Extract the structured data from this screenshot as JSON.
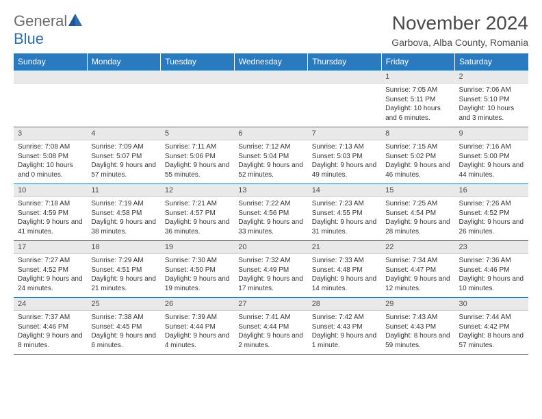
{
  "brand": {
    "general": "General",
    "blue": "Blue"
  },
  "title": "November 2024",
  "location": "Garbova, Alba County, Romania",
  "weekdays": [
    "Sunday",
    "Monday",
    "Tuesday",
    "Wednesday",
    "Thursday",
    "Friday",
    "Saturday"
  ],
  "colors": {
    "header_bg": "#2a7ac0",
    "header_text": "#ffffff",
    "daynum_bg": "#e9e9e9",
    "border": "#2a7ac0",
    "text": "#333333",
    "title": "#4a4a4a"
  },
  "fonts": {
    "title_size": 28,
    "location_size": 14,
    "weekday_size": 12,
    "daynum_size": 11,
    "body_size": 10
  },
  "grid": {
    "cols": 7,
    "rows": 5,
    "first_day_col": 5,
    "days_in_month": 30
  },
  "days": [
    {
      "n": 1,
      "sunrise": "7:05 AM",
      "sunset": "5:11 PM",
      "daylight": "10 hours and 6 minutes."
    },
    {
      "n": 2,
      "sunrise": "7:06 AM",
      "sunset": "5:10 PM",
      "daylight": "10 hours and 3 minutes."
    },
    {
      "n": 3,
      "sunrise": "7:08 AM",
      "sunset": "5:08 PM",
      "daylight": "10 hours and 0 minutes."
    },
    {
      "n": 4,
      "sunrise": "7:09 AM",
      "sunset": "5:07 PM",
      "daylight": "9 hours and 57 minutes."
    },
    {
      "n": 5,
      "sunrise": "7:11 AM",
      "sunset": "5:06 PM",
      "daylight": "9 hours and 55 minutes."
    },
    {
      "n": 6,
      "sunrise": "7:12 AM",
      "sunset": "5:04 PM",
      "daylight": "9 hours and 52 minutes."
    },
    {
      "n": 7,
      "sunrise": "7:13 AM",
      "sunset": "5:03 PM",
      "daylight": "9 hours and 49 minutes."
    },
    {
      "n": 8,
      "sunrise": "7:15 AM",
      "sunset": "5:02 PM",
      "daylight": "9 hours and 46 minutes."
    },
    {
      "n": 9,
      "sunrise": "7:16 AM",
      "sunset": "5:00 PM",
      "daylight": "9 hours and 44 minutes."
    },
    {
      "n": 10,
      "sunrise": "7:18 AM",
      "sunset": "4:59 PM",
      "daylight": "9 hours and 41 minutes."
    },
    {
      "n": 11,
      "sunrise": "7:19 AM",
      "sunset": "4:58 PM",
      "daylight": "9 hours and 38 minutes."
    },
    {
      "n": 12,
      "sunrise": "7:21 AM",
      "sunset": "4:57 PM",
      "daylight": "9 hours and 36 minutes."
    },
    {
      "n": 13,
      "sunrise": "7:22 AM",
      "sunset": "4:56 PM",
      "daylight": "9 hours and 33 minutes."
    },
    {
      "n": 14,
      "sunrise": "7:23 AM",
      "sunset": "4:55 PM",
      "daylight": "9 hours and 31 minutes."
    },
    {
      "n": 15,
      "sunrise": "7:25 AM",
      "sunset": "4:54 PM",
      "daylight": "9 hours and 28 minutes."
    },
    {
      "n": 16,
      "sunrise": "7:26 AM",
      "sunset": "4:52 PM",
      "daylight": "9 hours and 26 minutes."
    },
    {
      "n": 17,
      "sunrise": "7:27 AM",
      "sunset": "4:52 PM",
      "daylight": "9 hours and 24 minutes."
    },
    {
      "n": 18,
      "sunrise": "7:29 AM",
      "sunset": "4:51 PM",
      "daylight": "9 hours and 21 minutes."
    },
    {
      "n": 19,
      "sunrise": "7:30 AM",
      "sunset": "4:50 PM",
      "daylight": "9 hours and 19 minutes."
    },
    {
      "n": 20,
      "sunrise": "7:32 AM",
      "sunset": "4:49 PM",
      "daylight": "9 hours and 17 minutes."
    },
    {
      "n": 21,
      "sunrise": "7:33 AM",
      "sunset": "4:48 PM",
      "daylight": "9 hours and 14 minutes."
    },
    {
      "n": 22,
      "sunrise": "7:34 AM",
      "sunset": "4:47 PM",
      "daylight": "9 hours and 12 minutes."
    },
    {
      "n": 23,
      "sunrise": "7:36 AM",
      "sunset": "4:46 PM",
      "daylight": "9 hours and 10 minutes."
    },
    {
      "n": 24,
      "sunrise": "7:37 AM",
      "sunset": "4:46 PM",
      "daylight": "9 hours and 8 minutes."
    },
    {
      "n": 25,
      "sunrise": "7:38 AM",
      "sunset": "4:45 PM",
      "daylight": "9 hours and 6 minutes."
    },
    {
      "n": 26,
      "sunrise": "7:39 AM",
      "sunset": "4:44 PM",
      "daylight": "9 hours and 4 minutes."
    },
    {
      "n": 27,
      "sunrise": "7:41 AM",
      "sunset": "4:44 PM",
      "daylight": "9 hours and 2 minutes."
    },
    {
      "n": 28,
      "sunrise": "7:42 AM",
      "sunset": "4:43 PM",
      "daylight": "9 hours and 1 minute."
    },
    {
      "n": 29,
      "sunrise": "7:43 AM",
      "sunset": "4:43 PM",
      "daylight": "8 hours and 59 minutes."
    },
    {
      "n": 30,
      "sunrise": "7:44 AM",
      "sunset": "4:42 PM",
      "daylight": "8 hours and 57 minutes."
    }
  ],
  "labels": {
    "sunrise": "Sunrise:",
    "sunset": "Sunset:",
    "daylight": "Daylight:"
  }
}
